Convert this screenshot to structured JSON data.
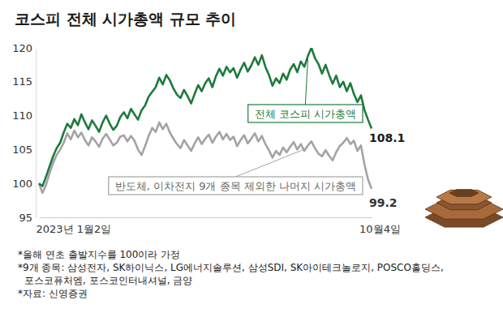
{
  "chart_data": {
    "type": "line",
    "title": "코스피 전체 시가총액 규모 추이",
    "categories": [
      "2023년 1월2일",
      null,
      null,
      null,
      null,
      null,
      null,
      null,
      null,
      null,
      null,
      null,
      null,
      null,
      null,
      null,
      null,
      null,
      null,
      null,
      null,
      null,
      null,
      null,
      null,
      null,
      null,
      null,
      null,
      null,
      null,
      null,
      null,
      null,
      null,
      null,
      null,
      null,
      null,
      null,
      null,
      null,
      null,
      null,
      null,
      null,
      null,
      null,
      null,
      null,
      null,
      null,
      null,
      null,
      null,
      null,
      null,
      null,
      null,
      null,
      null,
      null,
      null,
      null,
      null,
      null,
      null,
      null,
      null,
      null,
      null,
      null,
      null,
      null,
      null,
      null,
      null,
      null,
      null,
      null,
      null,
      null,
      null,
      null,
      null,
      null,
      null,
      null,
      null,
      null,
      null,
      null,
      null,
      null,
      "10월4일"
    ],
    "series": [
      {
        "name": "전체 코스피 시가총액",
        "color": "#1e7a3c",
        "values": [
          100.0,
          99.6,
          101.0,
          102.5,
          104.0,
          105.2,
          106.0,
          107.5,
          108.8,
          108.2,
          109.5,
          108.6,
          110.2,
          109.0,
          108.0,
          109.3,
          108.5,
          107.6,
          109.0,
          110.0,
          108.8,
          107.9,
          108.5,
          109.8,
          110.5,
          109.6,
          111.0,
          110.2,
          109.4,
          110.8,
          111.5,
          112.8,
          113.5,
          114.2,
          115.6,
          114.6,
          116.0,
          115.2,
          114.0,
          113.1,
          112.6,
          113.8,
          112.9,
          111.8,
          113.2,
          114.5,
          113.6,
          114.8,
          115.5,
          114.2,
          115.8,
          116.9,
          115.9,
          117.2,
          116.4,
          117.0,
          115.6,
          116.8,
          117.8,
          116.5,
          117.4,
          118.6,
          117.5,
          118.9,
          117.2,
          116.0,
          114.4,
          115.5,
          114.8,
          116.2,
          115.3,
          116.8,
          117.6,
          116.4,
          118.0,
          117.2,
          118.8,
          120.0,
          118.5,
          117.6,
          116.2,
          117.5,
          116.0,
          114.7,
          115.9,
          114.2,
          115.0,
          113.6,
          114.8,
          113.2,
          112.0,
          113.0,
          110.8,
          109.4,
          108.1
        ]
      },
      {
        "name": "반도체, 이차전지 9개 종목 제외한 나머지 시가총액",
        "color": "#a3a3a3",
        "values": [
          100.0,
          98.6,
          99.8,
          101.5,
          103.0,
          104.2,
          105.0,
          106.0,
          107.4,
          106.5,
          107.8,
          106.8,
          107.5,
          106.4,
          105.6,
          106.8,
          106.2,
          105.4,
          106.6,
          107.3,
          106.5,
          105.6,
          106.0,
          106.9,
          107.1,
          106.2,
          107.0,
          106.3,
          105.0,
          104.2,
          105.5,
          107.0,
          108.2,
          107.6,
          109.0,
          108.0,
          108.8,
          107.5,
          106.6,
          105.8,
          105.2,
          106.4,
          105.6,
          104.8,
          105.9,
          106.8,
          105.8,
          106.6,
          107.2,
          106.0,
          106.9,
          107.6,
          106.5,
          107.3,
          106.4,
          106.9,
          105.5,
          106.4,
          107.1,
          105.9,
          106.6,
          107.4,
          106.2,
          107.0,
          105.8,
          104.9,
          103.8,
          104.8,
          104.2,
          105.3,
          104.6,
          105.4,
          106.1,
          105.0,
          105.8,
          104.8,
          105.6,
          106.2,
          105.2,
          104.4,
          104.0,
          104.9,
          104.1,
          103.4,
          104.6,
          105.5,
          106.0,
          106.7,
          105.8,
          106.3,
          104.8,
          105.6,
          102.8,
          100.6,
          99.2
        ]
      }
    ],
    "ylim": [
      95,
      120
    ],
    "yticks": [
      95,
      100,
      105,
      110,
      115,
      120
    ],
    "grid": false,
    "annotations": [
      {
        "text": "108.1"
      },
      {
        "text": "99.2"
      }
    ],
    "notes": [
      "*올해 연초 출발지수를 100이라 가정",
      "*9개 종목: 삼성전자, SK하이닉스, LG에너지솔루션, 삼성SDI, SK아이테크놀로지, POSCO홀딩스,",
      "포스코퓨처엠, 포스코인터내셔널, 금양",
      "*자료: 신영증권"
    ]
  }
}
